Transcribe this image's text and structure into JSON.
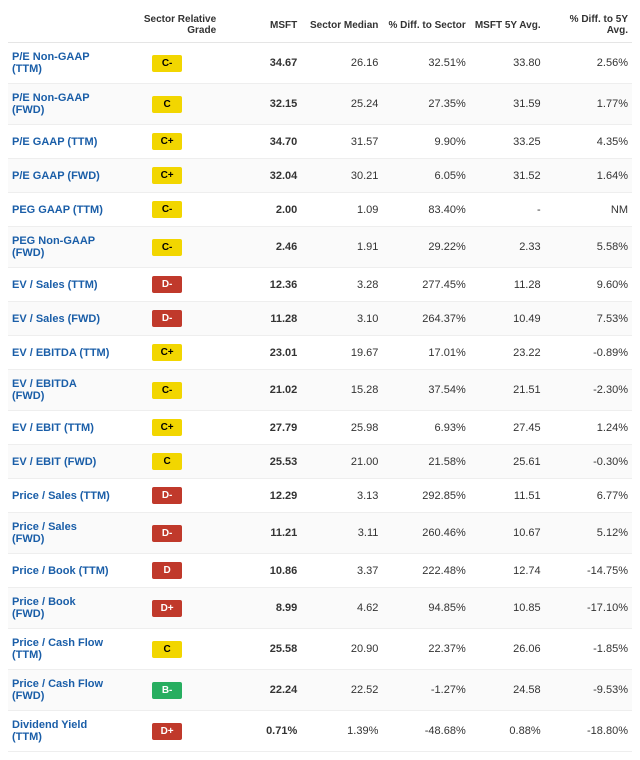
{
  "ticker": "MSFT",
  "columns": {
    "metric": "",
    "grade": "Sector Relative Grade",
    "value": "MSFT",
    "median": "Sector Median",
    "diff_sector": "% Diff. to Sector",
    "avg5y": "MSFT 5Y Avg.",
    "diff_5y": "% Diff. to 5Y Avg."
  },
  "grade_colors": {
    "C-": "#f2d600",
    "C": "#f2d600",
    "C+": "#f2d600",
    "D-": "#c0392b",
    "D": "#c0392b",
    "D+": "#c0392b",
    "B-": "#27ae60"
  },
  "grade_text_colors": {
    "C-": "#000000",
    "C": "#000000",
    "C+": "#000000",
    "D-": "#ffffff",
    "D": "#ffffff",
    "D+": "#ffffff",
    "B-": "#ffffff"
  },
  "rows": [
    {
      "metric": "P/E Non-GAAP (TTM)",
      "grade": "C-",
      "value": "34.67",
      "median": "26.16",
      "diff_sector": "32.51%",
      "avg5y": "33.80",
      "diff_5y": "2.56%"
    },
    {
      "metric": "P/E Non-GAAP (FWD)",
      "grade": "C",
      "value": "32.15",
      "median": "25.24",
      "diff_sector": "27.35%",
      "avg5y": "31.59",
      "diff_5y": "1.77%"
    },
    {
      "metric": "P/E GAAP (TTM)",
      "grade": "C+",
      "value": "34.70",
      "median": "31.57",
      "diff_sector": "9.90%",
      "avg5y": "33.25",
      "diff_5y": "4.35%"
    },
    {
      "metric": "P/E GAAP (FWD)",
      "grade": "C+",
      "value": "32.04",
      "median": "30.21",
      "diff_sector": "6.05%",
      "avg5y": "31.52",
      "diff_5y": "1.64%"
    },
    {
      "metric": "PEG GAAP (TTM)",
      "grade": "C-",
      "value": "2.00",
      "median": "1.09",
      "diff_sector": "83.40%",
      "avg5y": "-",
      "diff_5y": "NM"
    },
    {
      "metric": "PEG Non-GAAP (FWD)",
      "grade": "C-",
      "value": "2.46",
      "median": "1.91",
      "diff_sector": "29.22%",
      "avg5y": "2.33",
      "diff_5y": "5.58%"
    },
    {
      "metric": "EV / Sales (TTM)",
      "grade": "D-",
      "value": "12.36",
      "median": "3.28",
      "diff_sector": "277.45%",
      "avg5y": "11.28",
      "diff_5y": "9.60%"
    },
    {
      "metric": "EV / Sales (FWD)",
      "grade": "D-",
      "value": "11.28",
      "median": "3.10",
      "diff_sector": "264.37%",
      "avg5y": "10.49",
      "diff_5y": "7.53%"
    },
    {
      "metric": "EV / EBITDA (TTM)",
      "grade": "C+",
      "value": "23.01",
      "median": "19.67",
      "diff_sector": "17.01%",
      "avg5y": "23.22",
      "diff_5y": "-0.89%"
    },
    {
      "metric": "EV / EBITDA (FWD)",
      "grade": "C-",
      "value": "21.02",
      "median": "15.28",
      "diff_sector": "37.54%",
      "avg5y": "21.51",
      "diff_5y": "-2.30%"
    },
    {
      "metric": "EV / EBIT (TTM)",
      "grade": "C+",
      "value": "27.79",
      "median": "25.98",
      "diff_sector": "6.93%",
      "avg5y": "27.45",
      "diff_5y": "1.24%"
    },
    {
      "metric": "EV / EBIT (FWD)",
      "grade": "C",
      "value": "25.53",
      "median": "21.00",
      "diff_sector": "21.58%",
      "avg5y": "25.61",
      "diff_5y": "-0.30%"
    },
    {
      "metric": "Price / Sales (TTM)",
      "grade": "D-",
      "value": "12.29",
      "median": "3.13",
      "diff_sector": "292.85%",
      "avg5y": "11.51",
      "diff_5y": "6.77%"
    },
    {
      "metric": "Price / Sales (FWD)",
      "grade": "D-",
      "value": "11.21",
      "median": "3.11",
      "diff_sector": "260.46%",
      "avg5y": "10.67",
      "diff_5y": "5.12%"
    },
    {
      "metric": "Price / Book (TTM)",
      "grade": "D",
      "value": "10.86",
      "median": "3.37",
      "diff_sector": "222.48%",
      "avg5y": "12.74",
      "diff_5y": "-14.75%"
    },
    {
      "metric": "Price / Book (FWD)",
      "grade": "D+",
      "value": "8.99",
      "median": "4.62",
      "diff_sector": "94.85%",
      "avg5y": "10.85",
      "diff_5y": "-17.10%"
    },
    {
      "metric": "Price / Cash Flow (TTM)",
      "grade": "C",
      "value": "25.58",
      "median": "20.90",
      "diff_sector": "22.37%",
      "avg5y": "26.06",
      "diff_5y": "-1.85%"
    },
    {
      "metric": "Price / Cash Flow (FWD)",
      "grade": "B-",
      "value": "22.24",
      "median": "22.52",
      "diff_sector": "-1.27%",
      "avg5y": "24.58",
      "diff_5y": "-9.53%"
    },
    {
      "metric": "Dividend Yield (TTM)",
      "grade": "D+",
      "value": "0.71%",
      "median": "1.39%",
      "diff_sector": "-48.68%",
      "avg5y": "0.88%",
      "diff_5y": "-18.80%"
    }
  ]
}
